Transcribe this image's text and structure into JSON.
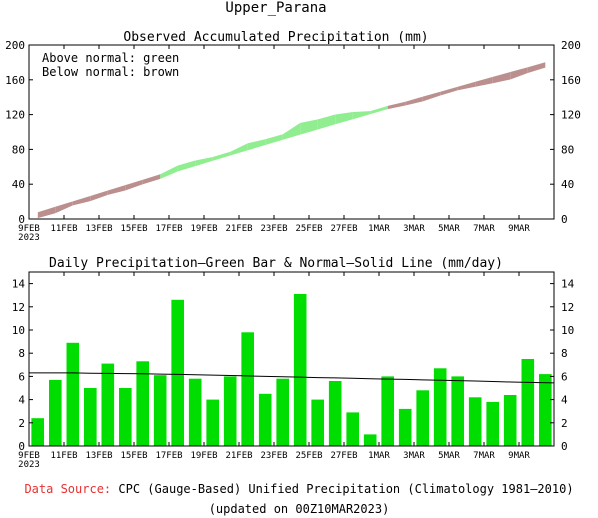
{
  "figure_title": "Upper_Parana",
  "chart_data": [
    {
      "type": "area",
      "title": "Observed Accumulated Precipitation (mm)",
      "ylim": [
        0,
        200
      ],
      "yticks": [
        0,
        40,
        80,
        120,
        160,
        200
      ],
      "xticks": [
        "9FEB",
        "11FEB",
        "13FEB",
        "15FEB",
        "17FEB",
        "19FEB",
        "21FEB",
        "23FEB",
        "25FEB",
        "27FEB",
        "1MAR",
        "3MAR",
        "5MAR",
        "7MAR",
        "9MAR"
      ],
      "year_label": "2023",
      "legend_lines": [
        "Above normal: green",
        "Below normal: brown"
      ],
      "colors": {
        "above": "#90ee90",
        "below": "#bc8f8f"
      },
      "days": [
        "9FEB",
        "10FEB",
        "11FEB",
        "12FEB",
        "13FEB",
        "14FEB",
        "15FEB",
        "16FEB",
        "17FEB",
        "18FEB",
        "19FEB",
        "20FEB",
        "21FEB",
        "22FEB",
        "23FEB",
        "24FEB",
        "25FEB",
        "26FEB",
        "27FEB",
        "28FEB",
        "1MAR",
        "2MAR",
        "3MAR",
        "4MAR",
        "5MAR",
        "6MAR",
        "7MAR",
        "8MAR",
        "9MAR",
        "10MAR"
      ],
      "series": [
        {
          "name": "observed",
          "values": [
            2.4,
            8.1,
            17.0,
            22.0,
            29.1,
            34.1,
            41.4,
            47.5,
            60.1,
            65.9,
            69.9,
            75.9,
            85.7,
            90.2,
            96.0,
            109.1,
            113.1,
            118.7,
            121.6,
            122.6,
            128.6,
            131.8,
            136.6,
            143.3,
            149.3,
            153.5,
            157.3,
            161.7,
            169.2,
            175.4
          ]
        },
        {
          "name": "normal",
          "values": [
            6.3,
            12.6,
            18.9,
            25.1,
            31.4,
            37.6,
            43.8,
            50.0,
            56.1,
            62.2,
            68.3,
            74.4,
            80.4,
            86.4,
            92.4,
            98.4,
            104.3,
            110.2,
            116.1,
            121.9,
            127.7,
            133.5,
            139.3,
            145.0,
            150.7,
            156.4,
            162.0,
            167.6,
            173.1,
            178.7
          ]
        }
      ]
    },
    {
      "type": "bar",
      "title": "Daily Precipitation—Green Bar & Normal—Solid Line (mm/day)",
      "ylim": [
        0,
        15
      ],
      "yticks": [
        0,
        2,
        4,
        6,
        8,
        10,
        12,
        14
      ],
      "xticks": [
        "9FEB",
        "11FEB",
        "13FEB",
        "15FEB",
        "17FEB",
        "19FEB",
        "21FEB",
        "23FEB",
        "25FEB",
        "27FEB",
        "1MAR",
        "3MAR",
        "5MAR",
        "7MAR",
        "9MAR"
      ],
      "year_label": "2023",
      "colors": {
        "bar": "#00dd00",
        "line": "#000000"
      },
      "categories": [
        "9FEB",
        "10FEB",
        "11FEB",
        "12FEB",
        "13FEB",
        "14FEB",
        "15FEB",
        "16FEB",
        "17FEB",
        "18FEB",
        "19FEB",
        "20FEB",
        "21FEB",
        "22FEB",
        "23FEB",
        "24FEB",
        "25FEB",
        "26FEB",
        "27FEB",
        "28FEB",
        "1MAR",
        "2MAR",
        "3MAR",
        "4MAR",
        "5MAR",
        "6MAR",
        "7MAR",
        "8MAR",
        "9MAR",
        "10MAR"
      ],
      "series": [
        {
          "name": "daily",
          "values": [
            2.4,
            5.7,
            8.9,
            5.0,
            7.1,
            5.0,
            7.3,
            6.1,
            12.6,
            5.8,
            4.0,
            6.0,
            9.8,
            4.5,
            5.8,
            13.1,
            4.0,
            5.6,
            2.9,
            1.0,
            6.0,
            3.2,
            4.8,
            6.7,
            6.0,
            4.2,
            3.8,
            4.4,
            7.5,
            6.2
          ]
        },
        {
          "name": "normal",
          "values": [
            6.3,
            6.3,
            6.3,
            6.28,
            6.26,
            6.24,
            6.22,
            6.2,
            6.17,
            6.14,
            6.11,
            6.08,
            6.04,
            6.0,
            5.97,
            5.94,
            5.9,
            5.87,
            5.84,
            5.8,
            5.77,
            5.74,
            5.7,
            5.67,
            5.64,
            5.6,
            5.56,
            5.52,
            5.48,
            5.44
          ]
        }
      ]
    }
  ],
  "footer": {
    "source_label": "Data Source:",
    "source_text": "CPC (Gauge-Based) Unified Precipitation (Climatology 1981–2010)",
    "updated": "(updated on 00Z10MAR2023)"
  }
}
